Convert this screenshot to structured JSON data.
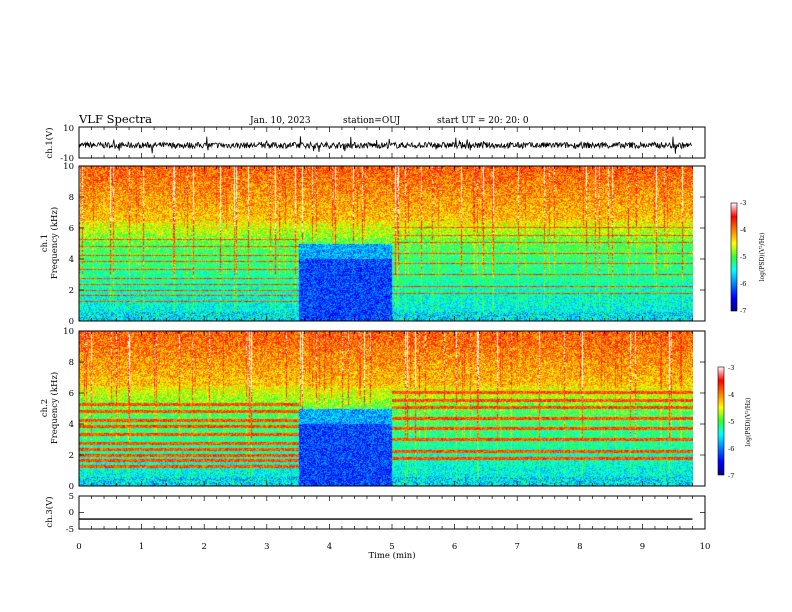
{
  "header": {
    "title": "VLF Spectra",
    "date": "Jan. 10, 2023",
    "station": "station=OUJ",
    "start": "start UT =  20: 20: 0"
  },
  "chart_data": [
    {
      "type": "line",
      "id": "ch1",
      "ylabel": "ch.1(V)",
      "ylim": [
        -10,
        10
      ],
      "yticks": [
        "10",
        "-10"
      ],
      "xlim": [
        0,
        10
      ],
      "description": "continuous noisy waveform around ~-2 V across 0–9.8 min"
    },
    {
      "type": "heatmap",
      "id": "spec1",
      "ylabel_line1": "ch.1",
      "ylabel_line2": "Frequency (kHz)",
      "ylim": [
        0,
        10
      ],
      "yticks": [
        "0",
        "2",
        "4",
        "6",
        "8",
        "10"
      ],
      "xlim": [
        0,
        10
      ],
      "colorbar": {
        "ticks": [
          "-3",
          "-4",
          "-5",
          "-6",
          "-7"
        ],
        "label": "log(PSD)(V²/Hz)",
        "range": [
          -7,
          -3
        ]
      }
    },
    {
      "type": "heatmap",
      "id": "spec2",
      "ylabel_line1": "ch.2",
      "ylabel_line2": "Frequency (kHz)",
      "ylim": [
        0,
        10
      ],
      "yticks": [
        "0",
        "2",
        "4",
        "6",
        "8",
        "10"
      ],
      "xlim": [
        0,
        10
      ],
      "colorbar": {
        "ticks": [
          "-3",
          "-4",
          "-5",
          "-6",
          "-7"
        ],
        "label": "log(PSD)(V²/Hz)",
        "range": [
          -7,
          -3
        ]
      }
    },
    {
      "type": "line",
      "id": "ch3",
      "ylabel": "ch.3(V)",
      "ylim": [
        -5,
        5
      ],
      "yticks": [
        "5",
        "0",
        "-5"
      ],
      "xlim": [
        0,
        10
      ],
      "x": [
        0,
        9.8
      ],
      "values": [
        -2,
        -2
      ]
    }
  ],
  "xaxis": {
    "label": "Time (min)",
    "ticks": [
      "0",
      "1",
      "2",
      "3",
      "4",
      "5",
      "6",
      "7",
      "8",
      "9",
      "10"
    ]
  }
}
